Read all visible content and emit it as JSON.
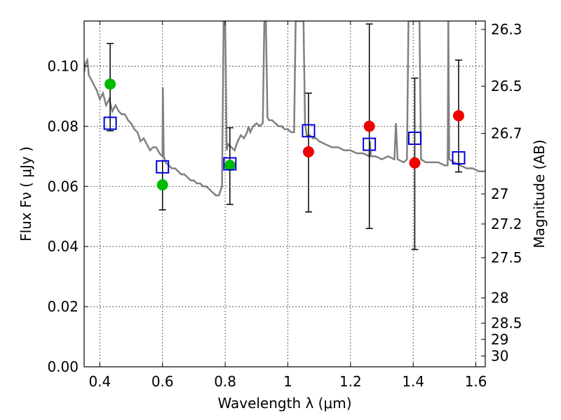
{
  "chart_data": {
    "type": "scatter",
    "title": "",
    "xlabel": "Wavelength  λ (μm)",
    "ylabel": "Flux  Fν  ( μJy )",
    "ylabel_right": "Magnitude (AB)",
    "xlim": [
      0.35,
      1.63
    ],
    "ylim": [
      0.0,
      0.115
    ],
    "grid": true,
    "x_ticks": [
      0.4,
      0.6,
      0.8,
      1.0,
      1.2,
      1.4,
      1.6
    ],
    "x_tick_labels": [
      "0.4",
      "0.6",
      "0.8",
      "1",
      "1.2",
      "1.4",
      "1.6"
    ],
    "y_ticks": [
      0.0,
      0.02,
      0.04,
      0.06,
      0.08,
      0.1
    ],
    "y_tick_labels": [
      "0.00",
      "0.02",
      "0.04",
      "0.06",
      "0.08",
      "0.10"
    ],
    "right_ticks": [
      {
        "flux": 0.1122,
        "label": "26.3"
      },
      {
        "flux": 0.0933,
        "label": "26.5"
      },
      {
        "flux": 0.0776,
        "label": "26.7"
      },
      {
        "flux": 0.0575,
        "label": "27"
      },
      {
        "flux": 0.0475,
        "label": "27.2"
      },
      {
        "flux": 0.0363,
        "label": "27.5"
      },
      {
        "flux": 0.0229,
        "label": "28"
      },
      {
        "flux": 0.0145,
        "label": "28.5"
      },
      {
        "flux": 0.0091,
        "label": "29"
      },
      {
        "flux": 0.0036,
        "label": "30"
      }
    ],
    "series": [
      {
        "marker": "line",
        "color": "#808080",
        "points": [
          [
            0.35,
            0.098
          ],
          [
            0.355,
            0.101
          ],
          [
            0.36,
            0.102
          ],
          [
            0.365,
            0.097
          ],
          [
            0.37,
            0.096
          ],
          [
            0.38,
            0.094
          ],
          [
            0.39,
            0.092
          ],
          [
            0.4,
            0.089
          ],
          [
            0.41,
            0.091
          ],
          [
            0.42,
            0.087
          ],
          [
            0.43,
            0.089
          ],
          [
            0.44,
            0.085
          ],
          [
            0.45,
            0.087
          ],
          [
            0.46,
            0.085
          ],
          [
            0.47,
            0.084
          ],
          [
            0.48,
            0.084
          ],
          [
            0.49,
            0.082
          ],
          [
            0.5,
            0.081
          ],
          [
            0.51,
            0.079
          ],
          [
            0.52,
            0.078
          ],
          [
            0.53,
            0.075
          ],
          [
            0.54,
            0.076
          ],
          [
            0.55,
            0.074
          ],
          [
            0.56,
            0.072
          ],
          [
            0.57,
            0.073
          ],
          [
            0.58,
            0.073
          ],
          [
            0.59,
            0.071
          ],
          [
            0.6,
            0.07
          ],
          [
            0.601,
            0.093
          ],
          [
            0.604,
            0.07
          ],
          [
            0.61,
            0.068
          ],
          [
            0.62,
            0.067
          ],
          [
            0.63,
            0.066
          ],
          [
            0.64,
            0.066
          ],
          [
            0.65,
            0.065
          ],
          [
            0.66,
            0.064
          ],
          [
            0.67,
            0.064
          ],
          [
            0.68,
            0.063
          ],
          [
            0.69,
            0.062
          ],
          [
            0.7,
            0.062
          ],
          [
            0.71,
            0.061
          ],
          [
            0.72,
            0.061
          ],
          [
            0.73,
            0.06
          ],
          [
            0.74,
            0.06
          ],
          [
            0.75,
            0.059
          ],
          [
            0.76,
            0.058
          ],
          [
            0.77,
            0.057
          ],
          [
            0.78,
            0.057
          ],
          [
            0.79,
            0.06
          ],
          [
            0.795,
            0.115
          ],
          [
            0.8,
            0.115
          ],
          [
            0.805,
            0.072
          ],
          [
            0.81,
            0.074
          ],
          [
            0.82,
            0.073
          ],
          [
            0.83,
            0.072
          ],
          [
            0.84,
            0.075
          ],
          [
            0.85,
            0.077
          ],
          [
            0.86,
            0.076
          ],
          [
            0.87,
            0.078
          ],
          [
            0.875,
            0.08
          ],
          [
            0.88,
            0.078
          ],
          [
            0.89,
            0.08
          ],
          [
            0.9,
            0.081
          ],
          [
            0.91,
            0.08
          ],
          [
            0.92,
            0.081
          ],
          [
            0.925,
            0.115
          ],
          [
            0.93,
            0.115
          ],
          [
            0.935,
            0.083
          ],
          [
            0.94,
            0.082
          ],
          [
            0.95,
            0.082
          ],
          [
            0.96,
            0.081
          ],
          [
            0.97,
            0.08
          ],
          [
            0.98,
            0.08
          ],
          [
            0.99,
            0.079
          ],
          [
            1.0,
            0.079
          ],
          [
            1.01,
            0.078
          ],
          [
            1.02,
            0.078
          ],
          [
            1.025,
            0.115
          ],
          [
            1.05,
            0.115
          ],
          [
            1.055,
            0.081
          ],
          [
            1.06,
            0.077
          ],
          [
            1.07,
            0.077
          ],
          [
            1.08,
            0.076
          ],
          [
            1.09,
            0.076
          ],
          [
            1.1,
            0.075
          ],
          [
            1.12,
            0.074
          ],
          [
            1.14,
            0.073
          ],
          [
            1.16,
            0.073
          ],
          [
            1.18,
            0.072
          ],
          [
            1.2,
            0.072
          ],
          [
            1.22,
            0.071
          ],
          [
            1.24,
            0.071
          ],
          [
            1.26,
            0.07
          ],
          [
            1.262,
            0.075
          ],
          [
            1.265,
            0.07
          ],
          [
            1.28,
            0.07
          ],
          [
            1.3,
            0.069
          ],
          [
            1.32,
            0.07
          ],
          [
            1.34,
            0.069
          ],
          [
            1.345,
            0.081
          ],
          [
            1.35,
            0.069
          ],
          [
            1.37,
            0.068
          ],
          [
            1.38,
            0.069
          ],
          [
            1.385,
            0.115
          ],
          [
            1.42,
            0.115
          ],
          [
            1.425,
            0.069
          ],
          [
            1.44,
            0.068
          ],
          [
            1.46,
            0.068
          ],
          [
            1.48,
            0.068
          ],
          [
            1.5,
            0.067
          ],
          [
            1.51,
            0.067
          ],
          [
            1.512,
            0.115
          ],
          [
            1.515,
            0.069
          ],
          [
            1.53,
            0.068
          ],
          [
            1.55,
            0.067
          ],
          [
            1.57,
            0.066
          ],
          [
            1.59,
            0.066
          ],
          [
            1.61,
            0.065
          ],
          [
            1.63,
            0.065
          ]
        ]
      },
      {
        "marker": "circle",
        "color": "#00bb00",
        "points": [
          [
            0.433,
            0.094
          ],
          [
            0.6,
            0.0605
          ],
          [
            0.815,
            0.067
          ]
        ]
      },
      {
        "marker": "circle",
        "color": "#ee0000",
        "points": [
          [
            1.066,
            0.0715
          ],
          [
            1.26,
            0.08
          ],
          [
            1.405,
            0.0678
          ],
          [
            1.545,
            0.0835
          ]
        ]
      },
      {
        "marker": "open-square",
        "color": "#0000dd",
        "points": [
          [
            0.433,
            0.081
          ],
          [
            0.6,
            0.0665
          ],
          [
            0.815,
            0.0675
          ],
          [
            1.066,
            0.0785
          ],
          [
            1.26,
            0.074
          ],
          [
            1.405,
            0.076
          ],
          [
            1.545,
            0.0695
          ]
        ]
      }
    ],
    "error_bars": [
      {
        "x": 0.433,
        "y": 0.081,
        "low": 0.0785,
        "high": 0.1075
      },
      {
        "x": 0.6,
        "y": 0.0665,
        "low": 0.0522,
        "high": 0.0685
      },
      {
        "x": 0.815,
        "y": 0.0675,
        "low": 0.054,
        "high": 0.0795
      },
      {
        "x": 1.066,
        "y": 0.0785,
        "low": 0.0515,
        "high": 0.091
      },
      {
        "x": 1.26,
        "y": 0.074,
        "low": 0.046,
        "high": 0.114
      },
      {
        "x": 1.405,
        "y": 0.076,
        "low": 0.039,
        "high": 0.096
      },
      {
        "x": 1.545,
        "y": 0.0695,
        "low": 0.0648,
        "high": 0.102
      }
    ]
  }
}
